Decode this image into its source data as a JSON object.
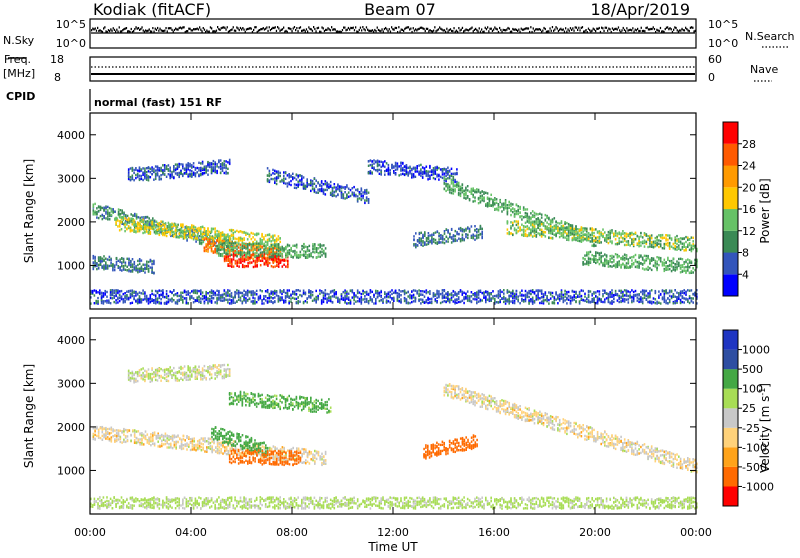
{
  "header": {
    "station": "Kodiak (fitACF)",
    "beam": "Beam 07",
    "date": "18/Apr/2019"
  },
  "status_panels": {
    "nsky": {
      "label": "N.Sky",
      "ticks": [
        "10^5",
        "10^0"
      ]
    },
    "nsearch": {
      "label": "N.Search",
      "ticks": [
        "10^5",
        "10^0"
      ]
    },
    "freq": {
      "label_line1": "Freq.",
      "label_line2": "[MHz]",
      "ticks": [
        "18",
        "8"
      ]
    },
    "nave": {
      "label": "Nave",
      "ticks": [
        "60",
        "0"
      ]
    },
    "cpid": {
      "label": "CPID",
      "value": "normal (fast) 151 RF"
    }
  },
  "colors": {
    "power_scale": [
      "#0000ff",
      "#3355bb",
      "#3a8a55",
      "#66c266",
      "#ffc800",
      "#ff9a00",
      "#ff5a00",
      "#ff0000"
    ],
    "velocity_scale": [
      "#ff0000",
      "#ff6a00",
      "#ffa31a",
      "#ffd27a",
      "#c8c8c8",
      "#a8dd55",
      "#44a844",
      "#2e4ea2",
      "#1f35c2"
    ]
  },
  "chart_data": [
    {
      "type": "heatmap",
      "panel": "power",
      "ylabel": "Slant Range [km]",
      "x_ticks": [
        "00:00",
        "04:00",
        "08:00",
        "12:00",
        "16:00",
        "20:00",
        "00:00"
      ],
      "y_ticks": [
        1000,
        2000,
        3000,
        4000
      ],
      "ylim": [
        0,
        4500
      ],
      "xlim_hours": [
        0,
        24
      ],
      "colorbar": {
        "label": "Power [dB]",
        "ticks": [
          "28",
          "24",
          "20",
          "16",
          "12",
          "8",
          "4"
        ],
        "range": [
          0,
          32
        ]
      },
      "echo_regions": [
        {
          "start": 0.1,
          "end": 5.6,
          "r1": 2300,
          "r2": 1500,
          "level": 10
        },
        {
          "start": 1.0,
          "end": 7.5,
          "r1": 2000,
          "r2": 1550,
          "level": 16
        },
        {
          "start": 4.5,
          "end": 7.5,
          "r1": 1500,
          "r2": 1250,
          "level": 24
        },
        {
          "start": 5.3,
          "end": 7.8,
          "r1": 1150,
          "r2": 1150,
          "level": 28
        },
        {
          "start": 5.0,
          "end": 9.3,
          "r1": 1400,
          "r2": 1350,
          "level": 12
        },
        {
          "start": 0.1,
          "end": 2.5,
          "r1": 1100,
          "r2": 1000,
          "level": 8
        },
        {
          "start": 1.5,
          "end": 5.5,
          "r1": 3100,
          "r2": 3300,
          "level": 6
        },
        {
          "start": 7.0,
          "end": 11.0,
          "r1": 3100,
          "r2": 2600,
          "level": 6
        },
        {
          "start": 11.0,
          "end": 14.5,
          "r1": 3300,
          "r2": 3100,
          "level": 5
        },
        {
          "start": 14.0,
          "end": 20.0,
          "r1": 2900,
          "r2": 1600,
          "level": 12
        },
        {
          "start": 16.5,
          "end": 24.0,
          "r1": 1900,
          "r2": 1500,
          "level": 14
        },
        {
          "start": 19.5,
          "end": 24.0,
          "r1": 1200,
          "r2": 1000,
          "level": 12
        },
        {
          "start": 12.8,
          "end": 15.5,
          "r1": 1600,
          "r2": 1800,
          "level": 8
        },
        {
          "start": 0.0,
          "end": 24.0,
          "r1": 300,
          "r2": 300,
          "level": 6
        }
      ]
    },
    {
      "type": "heatmap",
      "panel": "velocity",
      "ylabel": "Slant Range [km]",
      "xlabel": "Time UT",
      "x_ticks": [
        "00:00",
        "04:00",
        "08:00",
        "12:00",
        "16:00",
        "20:00",
        "00:00"
      ],
      "y_ticks": [
        1000,
        2000,
        3000,
        4000
      ],
      "ylim": [
        0,
        4500
      ],
      "xlim_hours": [
        0,
        24
      ],
      "colorbar": {
        "label": "Velocity [m s^-1]",
        "ticks": [
          "1000",
          "500",
          "100",
          "25",
          "-25",
          "-100",
          "-500",
          "-1000"
        ]
      },
      "echo_regions": [
        {
          "start": 0.1,
          "end": 9.3,
          "r1": 1900,
          "r2": 1300,
          "velocity": 0
        },
        {
          "start": 4.8,
          "end": 7.0,
          "r1": 1900,
          "r2": 1500,
          "velocity": 150
        },
        {
          "start": 5.5,
          "end": 8.3,
          "r1": 1350,
          "r2": 1300,
          "velocity": -150
        },
        {
          "start": 13.2,
          "end": 15.3,
          "r1": 1450,
          "r2": 1700,
          "velocity": -400
        },
        {
          "start": 14.0,
          "end": 24.0,
          "r1": 2900,
          "r2": 1100,
          "velocity": 0
        },
        {
          "start": 1.5,
          "end": 5.5,
          "r1": 3200,
          "r2": 3300,
          "velocity": 20
        },
        {
          "start": 5.5,
          "end": 9.5,
          "r1": 2700,
          "r2": 2500,
          "velocity": 120
        },
        {
          "start": 0.0,
          "end": 24.0,
          "r1": 250,
          "r2": 250,
          "velocity": 40
        }
      ]
    }
  ]
}
